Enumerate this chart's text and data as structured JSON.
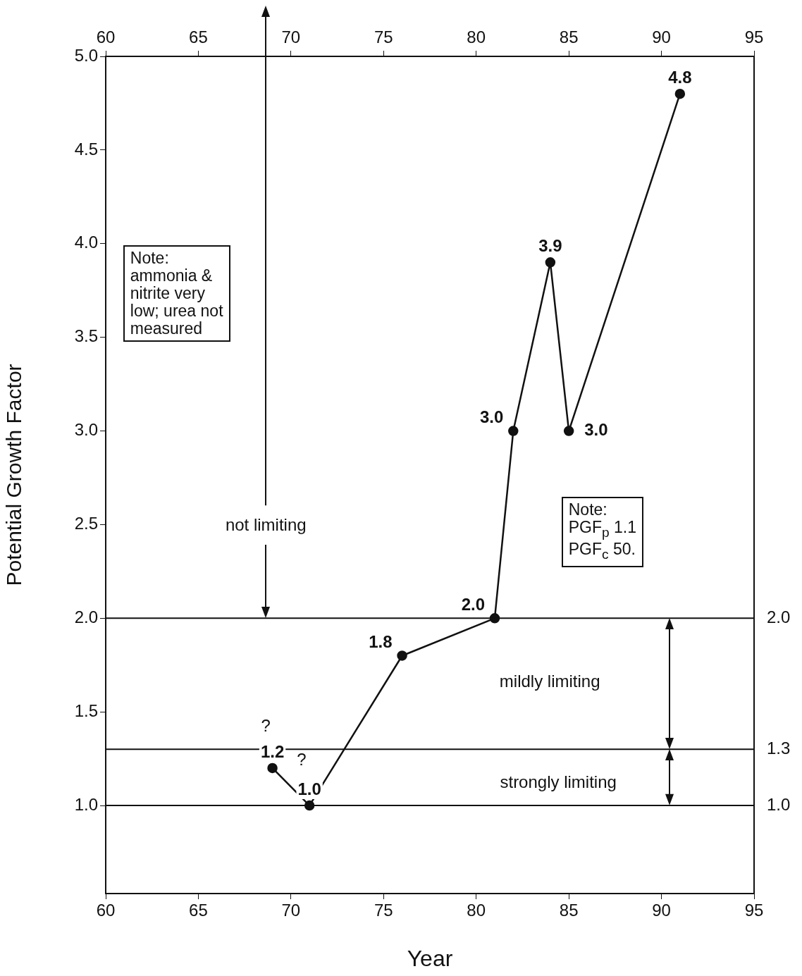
{
  "chart_data": {
    "type": "line",
    "xlabel": "Year",
    "ylabel": "Potential Growth Factor",
    "x": [
      69,
      71,
      76,
      81,
      82,
      84,
      85,
      91
    ],
    "values": [
      1.2,
      1.0,
      1.8,
      2.0,
      3.0,
      3.9,
      3.0,
      4.8
    ],
    "value_labels": [
      "1.2",
      "1.0",
      "1.8",
      "2.0",
      "3.0",
      "3.9",
      "3.0",
      "4.8"
    ],
    "color": "#111111",
    "marker": "circle",
    "line_style": "solid",
    "grid": false,
    "legend": false,
    "xlim": [
      60,
      95
    ],
    "xticks": [
      60,
      65,
      70,
      75,
      80,
      85,
      90,
      95
    ],
    "x2lim": [
      60,
      95
    ],
    "x2ticks": [
      60,
      65,
      70,
      75,
      80,
      85,
      90,
      95
    ],
    "ylim": [
      0.53,
      5.0
    ],
    "yticks": [
      {
        "value": 1,
        "label": "1.0"
      },
      {
        "value": 1.5,
        "label": "1.5"
      },
      {
        "value": 2,
        "label": "2.0"
      },
      {
        "value": 2.5,
        "label": "2.5"
      },
      {
        "value": 3,
        "label": "3.0"
      },
      {
        "value": 3.5,
        "label": "3.5"
      },
      {
        "value": 4,
        "label": "4.0"
      },
      {
        "value": 4.5,
        "label": "4.5"
      },
      {
        "value": 5,
        "label": "5.0"
      }
    ],
    "ref_lines": [
      {
        "axis": "y",
        "value": 2.0,
        "label": "2.0",
        "color": "#111111"
      },
      {
        "axis": "y",
        "value": 1.3,
        "label": "1.3",
        "color": "#111111"
      },
      {
        "axis": "y",
        "value": 1.0,
        "label": "1.0",
        "color": "#111111"
      }
    ],
    "annotations": [
      "Note:\nammonia &\nnitrite very\nlow; urea not\nmeasured",
      "Note:\nPGF$_{p}$  1.1\nPGF$_{c}$  50.",
      "not limiting",
      "mildly limiting",
      "strongly limiting",
      "?",
      "?"
    ]
  }
}
